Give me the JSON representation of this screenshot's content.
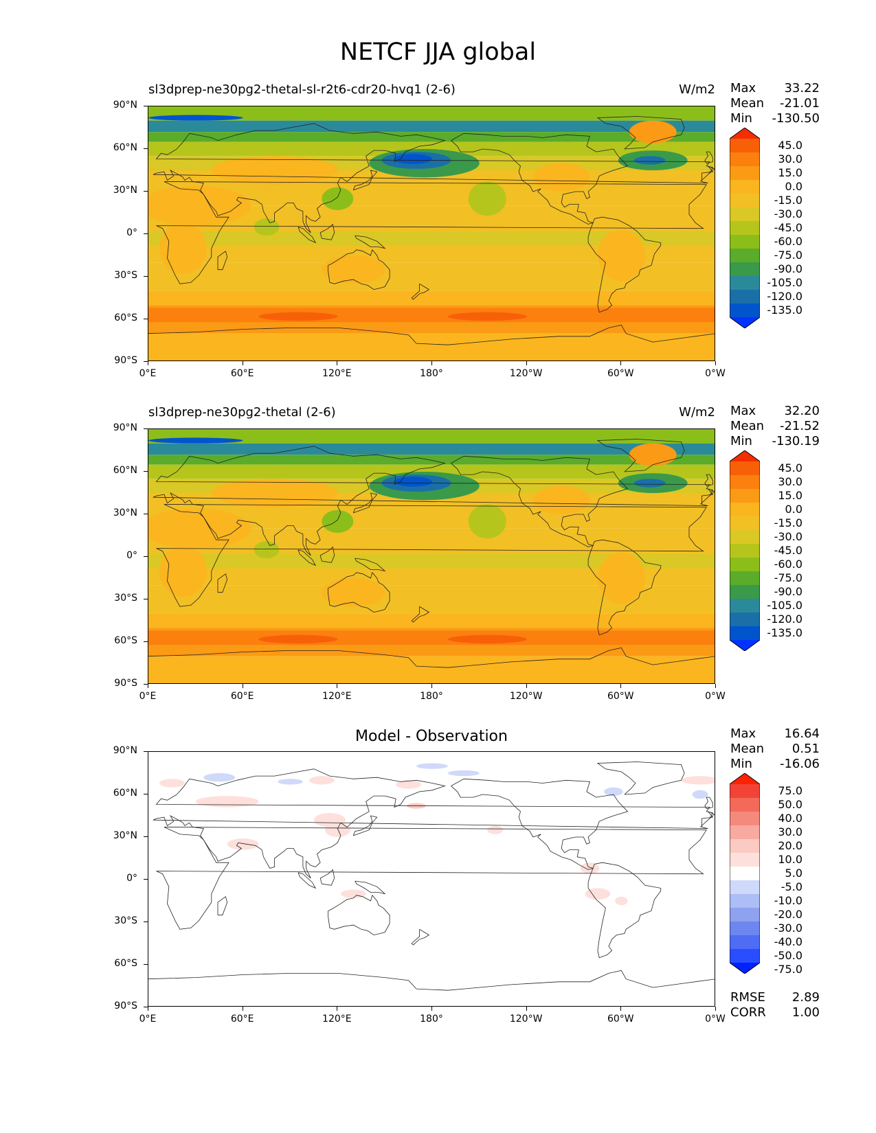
{
  "figure_title": "NETCF JJA global",
  "colors": {
    "field_scale": [
      "#0033ff",
      "#0055cc",
      "#1a6fa8",
      "#2a8a9a",
      "#3a9a4a",
      "#5aac2a",
      "#8cbe1a",
      "#b6c51c",
      "#d9c825",
      "#f2bf25",
      "#fbb51e",
      "#fb9a14",
      "#fb800e",
      "#f86008",
      "#f52d02",
      "#ff2000"
    ],
    "diff_scale": [
      "#0022ff",
      "#2a4dff",
      "#4f6cf5",
      "#6e87f0",
      "#8ea2f0",
      "#adbdf5",
      "#cfd9fa",
      "#ffffff",
      "#fde0dc",
      "#fbcac3",
      "#f8aaa0",
      "#f58a7c",
      "#f46a5a",
      "#f14437",
      "#ff2200"
    ]
  },
  "chart_data": [
    {
      "type": "heatmap",
      "title": "sl3dprep-ne30pg2-thetal-sl-r2t6-cdr20-hvq1 (2-6)",
      "units": "W/m2",
      "stats": {
        "max": "33.22",
        "mean": "-21.01",
        "min": "-130.50"
      },
      "colorbar_levels": [
        "45.0",
        "30.0",
        "15.0",
        "0.0",
        "-15.0",
        "-30.0",
        "-45.0",
        "-60.0",
        "-75.0",
        "-90.0",
        "-105.0",
        "-120.0",
        "-135.0"
      ],
      "xticks": [
        "0°E",
        "60°E",
        "120°E",
        "180°",
        "120°W",
        "60°W",
        "0°W"
      ],
      "yticks": [
        "90°N",
        "60°N",
        "30°N",
        "0°",
        "30°S",
        "60°S",
        "90°S"
      ],
      "xlim": [
        0,
        360
      ],
      "ylim": [
        -90,
        90
      ],
      "labels": {
        "max": "Max",
        "mean": "Mean",
        "min": "Min"
      }
    },
    {
      "type": "heatmap",
      "title": "sl3dprep-ne30pg2-thetal (2-6)",
      "units": "W/m2",
      "stats": {
        "max": "32.20",
        "mean": "-21.52",
        "min": "-130.19"
      },
      "colorbar_levels": [
        "45.0",
        "30.0",
        "15.0",
        "0.0",
        "-15.0",
        "-30.0",
        "-45.0",
        "-60.0",
        "-75.0",
        "-90.0",
        "-105.0",
        "-120.0",
        "-135.0"
      ],
      "xticks": [
        "0°E",
        "60°E",
        "120°E",
        "180°",
        "120°W",
        "60°W",
        "0°W"
      ],
      "yticks": [
        "90°N",
        "60°N",
        "30°N",
        "0°",
        "30°S",
        "60°S",
        "90°S"
      ],
      "xlim": [
        0,
        360
      ],
      "ylim": [
        -90,
        90
      ],
      "labels": {
        "max": "Max",
        "mean": "Mean",
        "min": "Min"
      }
    },
    {
      "type": "heatmap",
      "title": "Model - Observation",
      "units": "",
      "stats": {
        "max": "16.64",
        "mean": "0.51",
        "min": "-16.06"
      },
      "colorbar_levels": [
        "75.0",
        "50.0",
        "40.0",
        "30.0",
        "20.0",
        "10.0",
        "5.0",
        "-5.0",
        "-10.0",
        "-20.0",
        "-30.0",
        "-40.0",
        "-50.0",
        "-75.0"
      ],
      "xticks": [
        "0°E",
        "60°E",
        "120°E",
        "180°",
        "120°W",
        "60°W",
        "0°W"
      ],
      "yticks": [
        "90°N",
        "60°N",
        "30°N",
        "0°",
        "30°S",
        "60°S",
        "90°S"
      ],
      "xlim": [
        0,
        360
      ],
      "ylim": [
        -90,
        90
      ],
      "labels": {
        "max": "Max",
        "mean": "Mean",
        "min": "Min"
      },
      "metrics": {
        "rmse_label": "RMSE",
        "rmse": "2.89",
        "corr_label": "CORR",
        "corr": "1.00"
      }
    }
  ]
}
